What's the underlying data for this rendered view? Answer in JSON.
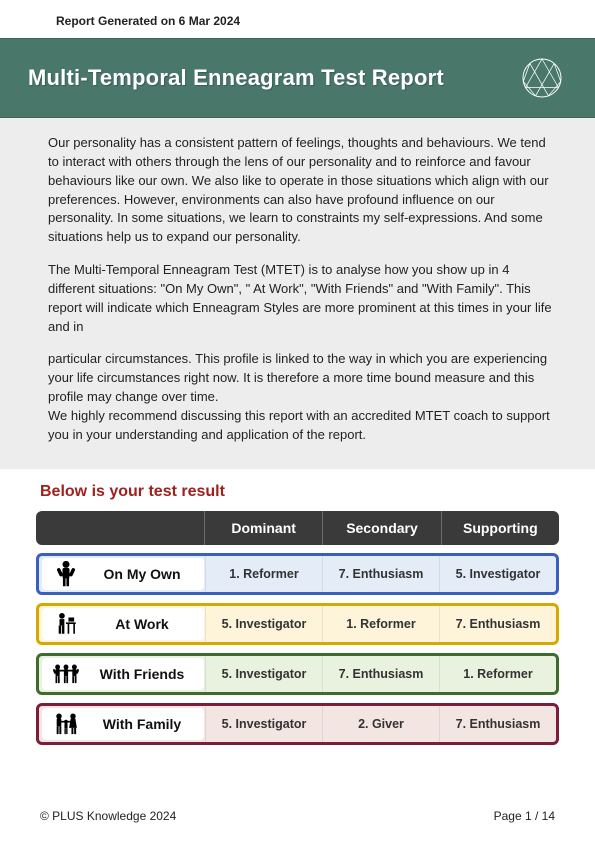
{
  "report_date": "Report Generated on 6 Mar 2024",
  "title": "Multi-Temporal Enneagram Test Report",
  "intro": {
    "p1": "Our personality has a consistent pattern of feelings, thoughts and behaviours. We tend to interact with others through the lens of our personality and to reinforce and favour behaviours like our own. We also like to operate in those situations which align with our preferences. However, environments can also have profound influence on our personality. In some situations, we learn to constraints my self-expressions. And some situations help us to expand our personality.",
    "p2": "The Multi-Temporal Enneagram Test (MTET) is to analyse how you show up in 4 different situations: \"On My Own\", \" At Work\", \"With Friends\" and \"With Family\". This report will indicate which Enneagram Styles are more prominent at this times in your life and in",
    "p3": "particular circumstances. This profile is linked to the way in which you are experiencing your life circumstances right now. It is therefore a more time bound measure and this profile may change over time.\nWe highly recommend discussing this report with an accredited MTET coach to support you in your understanding and application of the report."
  },
  "result_heading": "Below is your test result",
  "columns": {
    "c1": "Dominant",
    "c2": "Secondary",
    "c3": "Supporting"
  },
  "rows": [
    {
      "label": "On My Own",
      "cells": [
        "1. Reformer",
        "7. Enthusiasm",
        "5. Investigator"
      ],
      "border_color": "#3a5fbf",
      "fill_color": "#e4ecf7",
      "icon": "person"
    },
    {
      "label": "At Work",
      "cells": [
        "5. Investigator",
        "1. Reformer",
        "7. Enthusiasm"
      ],
      "border_color": "#d6a900",
      "fill_color": "#fdf4d9",
      "icon": "desk"
    },
    {
      "label": "With Friends",
      "cells": [
        "5. Investigator",
        "7. Enthusiasm",
        "1. Reformer"
      ],
      "border_color": "#3e6b2e",
      "fill_color": "#e9f2de",
      "icon": "friends"
    },
    {
      "label": "With Family",
      "cells": [
        "5. Investigator",
        "2. Giver",
        "7. Enthusiasm"
      ],
      "border_color": "#7b1e3e",
      "fill_color": "#f3e5e2",
      "icon": "family"
    }
  ],
  "footer": {
    "left": "© PLUS Knowledge 2024",
    "right": "Page 1 / 14"
  },
  "colors": {
    "banner_bg": "#49786b",
    "intro_bg": "#ededed",
    "header_row_bg": "#3a3a3a",
    "result_heading_color": "#a01f1f"
  }
}
